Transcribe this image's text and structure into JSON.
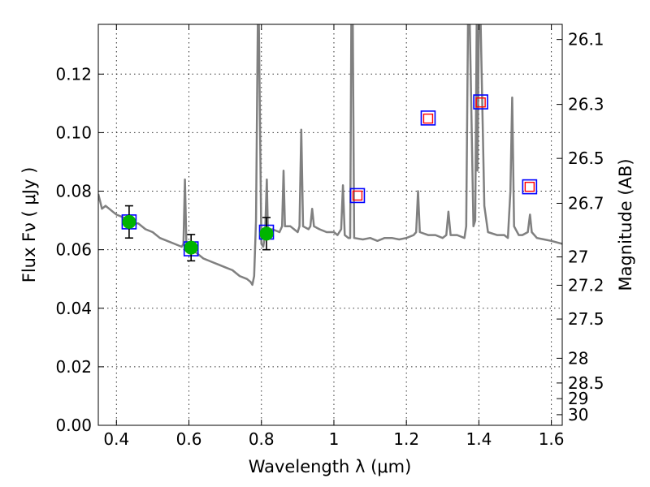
{
  "chart_data": {
    "type": "line",
    "xlabel": "Wavelength  λ (μm)",
    "ylabel": "Flux  Fν  ( μJy )",
    "ylabel_right": "Magnitude (AB)",
    "xlim": [
      0.35,
      1.63
    ],
    "ylim": [
      0.0,
      0.137
    ],
    "grid": true,
    "x_ticks": [
      0.4,
      0.6,
      0.8,
      1.0,
      1.2,
      1.4,
      1.6
    ],
    "x_tick_labels": [
      "0.4",
      "0.6",
      "0.8",
      "1",
      "1.2",
      "1.4",
      "1.6"
    ],
    "y_ticks": [
      0.0,
      0.02,
      0.04,
      0.06,
      0.08,
      0.1,
      0.12
    ],
    "y_tick_labels": [
      "0.00",
      "0.02",
      "0.04",
      "0.06",
      "0.08",
      "0.10",
      "0.12"
    ],
    "right_ticks_mag": [
      26.1,
      26.3,
      26.5,
      26.7,
      27,
      27.2,
      27.5,
      28,
      28.5,
      29,
      30
    ],
    "right_tick_labels": [
      "26.1",
      "26.3",
      "26.5",
      "26.7",
      "27",
      "27.2",
      "27.5",
      "28",
      "28.5",
      "29",
      "30"
    ],
    "series": [
      {
        "type": "line",
        "color": "#808080",
        "points": [
          [
            0.35,
            0.079
          ],
          [
            0.36,
            0.074
          ],
          [
            0.37,
            0.075
          ],
          [
            0.38,
            0.074
          ],
          [
            0.39,
            0.073
          ],
          [
            0.4,
            0.072
          ],
          [
            0.42,
            0.071
          ],
          [
            0.44,
            0.069
          ],
          [
            0.46,
            0.069
          ],
          [
            0.48,
            0.067
          ],
          [
            0.5,
            0.066
          ],
          [
            0.52,
            0.064
          ],
          [
            0.54,
            0.063
          ],
          [
            0.56,
            0.062
          ],
          [
            0.58,
            0.061
          ],
          [
            0.585,
            0.062
          ],
          [
            0.589,
            0.084
          ],
          [
            0.593,
            0.062
          ],
          [
            0.6,
            0.0605
          ],
          [
            0.62,
            0.059
          ],
          [
            0.64,
            0.057
          ],
          [
            0.66,
            0.056
          ],
          [
            0.68,
            0.055
          ],
          [
            0.7,
            0.054
          ],
          [
            0.72,
            0.053
          ],
          [
            0.74,
            0.051
          ],
          [
            0.76,
            0.05
          ],
          [
            0.77,
            0.049
          ],
          [
            0.775,
            0.048
          ],
          [
            0.78,
            0.051
          ],
          [
            0.785,
            0.07
          ],
          [
            0.79,
            0.137
          ],
          [
            0.793,
            0.137
          ],
          [
            0.8,
            0.062
          ],
          [
            0.805,
            0.061
          ],
          [
            0.81,
            0.065
          ],
          [
            0.815,
            0.084
          ],
          [
            0.818,
            0.065
          ],
          [
            0.83,
            0.067
          ],
          [
            0.85,
            0.066
          ],
          [
            0.857,
            0.068
          ],
          [
            0.861,
            0.087
          ],
          [
            0.865,
            0.068
          ],
          [
            0.88,
            0.068
          ],
          [
            0.9,
            0.066
          ],
          [
            0.905,
            0.068
          ],
          [
            0.91,
            0.101
          ],
          [
            0.915,
            0.068
          ],
          [
            0.93,
            0.067
          ],
          [
            0.935,
            0.068
          ],
          [
            0.94,
            0.074
          ],
          [
            0.945,
            0.068
          ],
          [
            0.96,
            0.067
          ],
          [
            0.98,
            0.066
          ],
          [
            1.0,
            0.066
          ],
          [
            1.01,
            0.065
          ],
          [
            1.02,
            0.067
          ],
          [
            1.025,
            0.082
          ],
          [
            1.03,
            0.065
          ],
          [
            1.04,
            0.064
          ],
          [
            1.045,
            0.064
          ],
          [
            1.048,
            0.137
          ],
          [
            1.052,
            0.137
          ],
          [
            1.056,
            0.064
          ],
          [
            1.08,
            0.0635
          ],
          [
            1.1,
            0.064
          ],
          [
            1.12,
            0.063
          ],
          [
            1.14,
            0.064
          ],
          [
            1.16,
            0.064
          ],
          [
            1.18,
            0.0635
          ],
          [
            1.2,
            0.064
          ],
          [
            1.22,
            0.065
          ],
          [
            1.227,
            0.066
          ],
          [
            1.232,
            0.08
          ],
          [
            1.237,
            0.066
          ],
          [
            1.26,
            0.065
          ],
          [
            1.28,
            0.065
          ],
          [
            1.3,
            0.064
          ],
          [
            1.31,
            0.065
          ],
          [
            1.316,
            0.073
          ],
          [
            1.322,
            0.065
          ],
          [
            1.34,
            0.065
          ],
          [
            1.36,
            0.064
          ],
          [
            1.365,
            0.068
          ],
          [
            1.37,
            0.137
          ],
          [
            1.375,
            0.137
          ],
          [
            1.385,
            0.068
          ],
          [
            1.39,
            0.07
          ],
          [
            1.394,
            0.137
          ],
          [
            1.396,
            0.087
          ],
          [
            1.4,
            0.137
          ],
          [
            1.405,
            0.137
          ],
          [
            1.415,
            0.075
          ],
          [
            1.425,
            0.066
          ],
          [
            1.45,
            0.065
          ],
          [
            1.47,
            0.065
          ],
          [
            1.48,
            0.064
          ],
          [
            1.487,
            0.08
          ],
          [
            1.492,
            0.112
          ],
          [
            1.497,
            0.068
          ],
          [
            1.51,
            0.065
          ],
          [
            1.52,
            0.065
          ],
          [
            1.535,
            0.066
          ],
          [
            1.541,
            0.072
          ],
          [
            1.546,
            0.066
          ],
          [
            1.56,
            0.064
          ],
          [
            1.58,
            0.0635
          ],
          [
            1.6,
            0.063
          ],
          [
            1.63,
            0.062
          ]
        ]
      },
      {
        "type": "scatter",
        "name": "",
        "marker": "filled-circle",
        "color": "#00b400",
        "points": [
          {
            "x": 0.435,
            "y": 0.0695,
            "err": 0.0055
          },
          {
            "x": 0.606,
            "y": 0.0607,
            "err": 0.0045
          },
          {
            "x": 0.814,
            "y": 0.0655,
            "err": 0.0055
          }
        ]
      },
      {
        "type": "scatter",
        "name": "",
        "marker": "open-square",
        "color": "#0000ff",
        "size": "large",
        "points": [
          {
            "x": 0.435,
            "y": 0.0695
          },
          {
            "x": 0.606,
            "y": 0.0603
          },
          {
            "x": 0.814,
            "y": 0.066
          },
          {
            "x": 1.065,
            "y": 0.0785
          },
          {
            "x": 1.26,
            "y": 0.105
          },
          {
            "x": 1.405,
            "y": 0.1105
          },
          {
            "x": 1.54,
            "y": 0.0815
          }
        ]
      },
      {
        "type": "scatter",
        "name": "",
        "marker": "open-square",
        "color": "#ff0000",
        "size": "small",
        "points": [
          {
            "x": 1.065,
            "y": 0.0785
          },
          {
            "x": 1.26,
            "y": 0.1048
          },
          {
            "x": 1.405,
            "y": 0.1103
          },
          {
            "x": 1.54,
            "y": 0.0815
          }
        ]
      }
    ]
  }
}
